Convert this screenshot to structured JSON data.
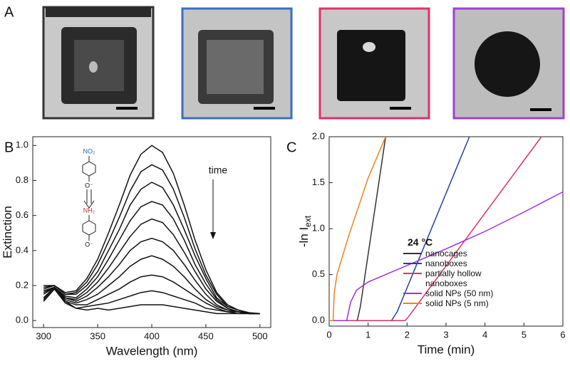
{
  "panel_labels": {
    "a": "A",
    "b": "B",
    "c": "C"
  },
  "chart_data": [
    {
      "type": "line",
      "x_label": "Wavelength (nm)",
      "y_label": "Extinction",
      "annotations": {
        "arrow": "time",
        "reactant_group": "NO₂",
        "product_group": "NH₂",
        "reactant_anion": "O⁻",
        "product_anion": "O⁻"
      },
      "x": [
        300,
        310,
        320,
        330,
        340,
        350,
        360,
        370,
        380,
        390,
        400,
        410,
        420,
        430,
        440,
        450,
        460,
        470,
        480,
        490,
        500
      ],
      "xlim": [
        290,
        510
      ],
      "xticks": [
        300,
        350,
        400,
        450,
        500
      ],
      "ylim": [
        -0.04,
        1.05
      ],
      "yticks": [
        {
          "value": 0,
          "label": "0.0"
        },
        {
          "value": 0.2,
          "label": "0.2"
        },
        {
          "value": 0.4,
          "label": "0.4"
        },
        {
          "value": 0.6,
          "label": "0.6"
        },
        {
          "value": 0.8,
          "label": "0.8"
        },
        {
          "value": 1,
          "label": "1.0"
        }
      ],
      "color": "#111111",
      "series": [
        {
          "values": [
            0.2,
            0.2,
            0.16,
            0.17,
            0.24,
            0.35,
            0.5,
            0.66,
            0.83,
            0.95,
            1.0,
            0.96,
            0.84,
            0.66,
            0.46,
            0.29,
            0.16,
            0.09,
            0.06,
            0.045,
            0.04
          ]
        },
        {
          "values": [
            0.19,
            0.2,
            0.15,
            0.16,
            0.22,
            0.32,
            0.45,
            0.59,
            0.74,
            0.85,
            0.89,
            0.86,
            0.75,
            0.59,
            0.41,
            0.26,
            0.15,
            0.08,
            0.06,
            0.04,
            0.04
          ]
        },
        {
          "values": [
            0.18,
            0.2,
            0.15,
            0.15,
            0.2,
            0.28,
            0.4,
            0.52,
            0.66,
            0.75,
            0.79,
            0.76,
            0.66,
            0.52,
            0.37,
            0.24,
            0.13,
            0.08,
            0.06,
            0.04,
            0.04
          ]
        },
        {
          "values": [
            0.17,
            0.19,
            0.14,
            0.13,
            0.18,
            0.25,
            0.35,
            0.46,
            0.57,
            0.65,
            0.68,
            0.66,
            0.58,
            0.46,
            0.32,
            0.21,
            0.12,
            0.07,
            0.05,
            0.04,
            0.04
          ]
        },
        {
          "values": [
            0.16,
            0.19,
            0.13,
            0.12,
            0.16,
            0.22,
            0.3,
            0.39,
            0.48,
            0.55,
            0.58,
            0.56,
            0.49,
            0.39,
            0.28,
            0.18,
            0.11,
            0.07,
            0.05,
            0.04,
            0.04
          ]
        },
        {
          "values": [
            0.15,
            0.19,
            0.13,
            0.11,
            0.14,
            0.19,
            0.25,
            0.32,
            0.4,
            0.45,
            0.47,
            0.45,
            0.4,
            0.32,
            0.23,
            0.15,
            0.09,
            0.06,
            0.05,
            0.04,
            0.04
          ]
        },
        {
          "values": [
            0.13,
            0.19,
            0.12,
            0.1,
            0.12,
            0.15,
            0.2,
            0.25,
            0.31,
            0.35,
            0.37,
            0.35,
            0.31,
            0.25,
            0.18,
            0.12,
            0.08,
            0.06,
            0.05,
            0.04,
            0.04
          ]
        },
        {
          "values": [
            0.12,
            0.19,
            0.11,
            0.09,
            0.09,
            0.12,
            0.15,
            0.18,
            0.22,
            0.25,
            0.26,
            0.25,
            0.22,
            0.18,
            0.14,
            0.1,
            0.07,
            0.05,
            0.05,
            0.04,
            0.04
          ]
        },
        {
          "values": [
            0.11,
            0.18,
            0.11,
            0.07,
            0.08,
            0.09,
            0.1,
            0.12,
            0.14,
            0.16,
            0.17,
            0.16,
            0.14,
            0.12,
            0.1,
            0.07,
            0.06,
            0.05,
            0.04,
            0.04,
            0.04
          ]
        },
        {
          "values": [
            0.11,
            0.18,
            0.1,
            0.07,
            0.06,
            0.07,
            0.06,
            0.07,
            0.08,
            0.09,
            0.09,
            0.09,
            0.08,
            0.07,
            0.06,
            0.05,
            0.04,
            0.04,
            0.04,
            0.04,
            0.04
          ]
        }
      ]
    },
    {
      "type": "line",
      "x_label": "Time (min)",
      "y_label": "-ln I",
      "y_label_sub": "ext",
      "legend_title": "24 °C",
      "xlim": [
        0,
        6
      ],
      "xticks": [
        0,
        1,
        2,
        3,
        4,
        5,
        6
      ],
      "ylim": [
        -0.06,
        2.0
      ],
      "yticks": [
        {
          "value": 0,
          "label": "0.0"
        },
        {
          "value": 0.5,
          "label": "0.5"
        },
        {
          "value": 1,
          "label": "1.0"
        },
        {
          "value": 1.5,
          "label": "1.5"
        },
        {
          "value": 2,
          "label": "2.0"
        }
      ],
      "series": [
        {
          "name": "nanocages",
          "color": "#333333",
          "x": [
            0,
            0.72,
            0.8,
            1.45
          ],
          "values": [
            0,
            0,
            0.15,
            2.0
          ]
        },
        {
          "name": "nanoboxes",
          "color": "#2340a0",
          "x": [
            0,
            1.6,
            1.75,
            3.6
          ],
          "values": [
            0,
            0,
            0.1,
            2.0
          ]
        },
        {
          "name": "partially hollow nanoboxes",
          "color": "#d8326c",
          "x": [
            0,
            1.95,
            2.05,
            5.45
          ],
          "values": [
            0,
            0,
            0.05,
            2.0
          ]
        },
        {
          "name": "solid NPs (50 nm)",
          "color": "#a030e0",
          "x": [
            0,
            0.45,
            0.55,
            0.7,
            1.0,
            2.0,
            3.0,
            4.0,
            5.0,
            6.0
          ],
          "values": [
            0,
            0,
            0.2,
            0.33,
            0.42,
            0.6,
            0.78,
            0.97,
            1.18,
            1.4
          ]
        },
        {
          "name": "solid NPs (5 nm)",
          "color": "#f07f20",
          "x": [
            0,
            0.1,
            0.13,
            0.2,
            0.5,
            1.0,
            1.45
          ],
          "values": [
            0,
            0,
            0.3,
            0.5,
            0.92,
            1.55,
            2.0
          ]
        }
      ]
    }
  ]
}
